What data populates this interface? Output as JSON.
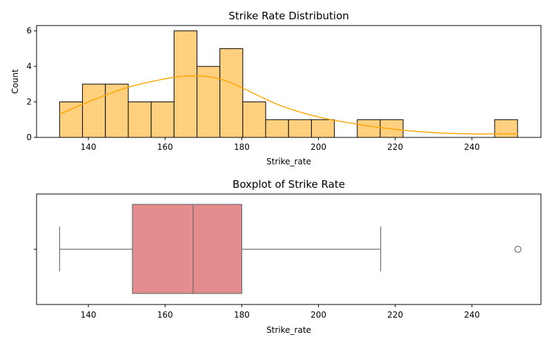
{
  "chart_data": [
    {
      "type": "bar",
      "subtype": "histogram",
      "title": "Strike Rate Distribution",
      "xlabel": "Strike_rate",
      "ylabel": "Count",
      "bin_start": 132.5,
      "bin_width": 5.97,
      "bin_counts": [
        2,
        3,
        3,
        2,
        2,
        6,
        4,
        5,
        2,
        1,
        1,
        1,
        0,
        1,
        1,
        0,
        0,
        0,
        0,
        1
      ],
      "xlim": [
        126.5,
        258.0
      ],
      "ylim": [
        0,
        6.3
      ],
      "xticks": [
        140,
        160,
        180,
        200,
        220,
        240
      ],
      "yticks": [
        0,
        2,
        4,
        6
      ],
      "bar_color": "#ffd17f",
      "edge_color": "#000000",
      "kde": {
        "x": [
          132.5,
          140,
          150,
          160,
          165,
          170,
          175,
          180,
          190,
          200,
          210,
          220,
          230,
          240,
          246,
          252
        ],
        "y": [
          1.3,
          2.0,
          2.8,
          3.3,
          3.45,
          3.45,
          3.25,
          2.8,
          1.8,
          1.15,
          0.75,
          0.45,
          0.27,
          0.2,
          0.2,
          0.2
        ],
        "color": "#ffa500"
      }
    },
    {
      "type": "box",
      "title": "Boxplot of Strike Rate",
      "xlabel": "Strike_rate",
      "xlim": [
        126.5,
        258.0
      ],
      "xticks": [
        140,
        160,
        180,
        200,
        220,
        240
      ],
      "whisker_low": 132.5,
      "q1": 151.5,
      "median": 167.3,
      "q3": 180.0,
      "whisker_high": 216.2,
      "outliers": [
        252.0
      ],
      "box_color": "#e38d8f",
      "line_color": "#6e6e6e"
    }
  ]
}
